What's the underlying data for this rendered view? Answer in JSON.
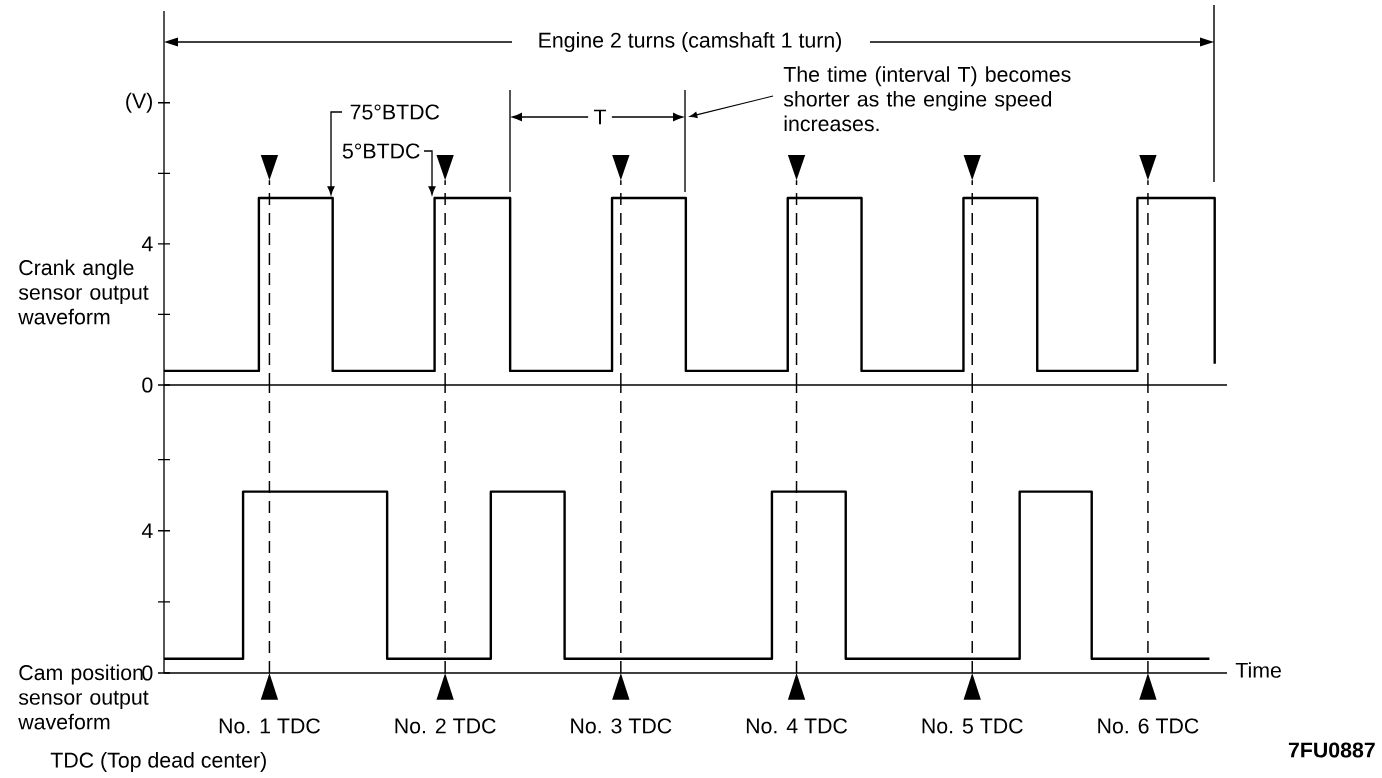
{
  "chart_data": [
    {
      "type": "step",
      "ylabel": "Crank angle sensor output waveform",
      "xlim": [
        0.4,
        6.45
      ],
      "ylim": [
        0,
        10.6
      ],
      "xticks": [
        {
          "value": 1,
          "label": null
        },
        {
          "value": 2,
          "label": null
        },
        {
          "value": 3,
          "label": null
        },
        {
          "value": 4,
          "label": null
        },
        {
          "value": 5,
          "label": null
        },
        {
          "value": 6,
          "label": null
        }
      ],
      "yticks": [
        0,
        {
          "value": 2,
          "label": null
        },
        4,
        {
          "value": 6,
          "label": null
        },
        {
          "value": 8,
          "label": "(V)"
        }
      ],
      "tick_labels": "y",
      "series": [
        {
          "color": "#000000",
          "x": [
            0.4,
            0.94,
            1.36,
            1.94,
            2.37,
            2.95,
            3.37,
            3.95,
            4.37,
            4.95,
            5.37,
            5.94,
            6.38
          ],
          "values": [
            0.4,
            5.3,
            0.4,
            5.3,
            0.4,
            5.3,
            0.4,
            5.3,
            0.4,
            5.3,
            0.4,
            5.3,
            0.6
          ]
        }
      ],
      "ref_lines": [
        {
          "axis": "x",
          "value": 1,
          "line_style": "dashed"
        },
        {
          "axis": "x",
          "value": 2,
          "line_style": "dashed"
        },
        {
          "axis": "x",
          "value": 3,
          "line_style": "dashed"
        },
        {
          "axis": "x",
          "value": 4,
          "line_style": "dashed"
        },
        {
          "axis": "x",
          "value": 5,
          "line_style": "dashed"
        },
        {
          "axis": "x",
          "value": 6,
          "line_style": "dashed"
        }
      ],
      "annotations": [
        "Engine 2 turns (camshaft 1 turn)",
        "75°BTDC",
        "5°BTDC",
        "T",
        "The time (interval T) becomes shorter as the engine speed increases."
      ]
    },
    {
      "type": "step",
      "ylabel": "Cam position sensor output waveform",
      "xlabel": "Time",
      "xlim": [
        0.4,
        6.45
      ],
      "ylim": [
        0,
        8.1
      ],
      "xticks": [
        {
          "value": 1,
          "label": "No. 1 TDC"
        },
        {
          "value": 2,
          "label": "No. 2 TDC"
        },
        {
          "value": 3,
          "label": "No. 3 TDC"
        },
        {
          "value": 4,
          "label": "No. 4 TDC"
        },
        {
          "value": 5,
          "label": "No. 5 TDC"
        },
        {
          "value": 6,
          "label": "No. 6 TDC"
        }
      ],
      "yticks": [
        0,
        {
          "value": 2,
          "label": null
        },
        4,
        {
          "value": 6,
          "label": null
        }
      ],
      "series": [
        {
          "color": "#000000",
          "x": [
            0.4,
            0.85,
            1.67,
            2.26,
            2.68,
            3.86,
            4.28,
            5.27,
            5.68,
            6.35
          ],
          "values": [
            0.4,
            5.1,
            0.4,
            5.1,
            0.4,
            5.1,
            0.4,
            5.1,
            0.4,
            0.4
          ]
        }
      ],
      "ref_lines": [
        {
          "axis": "x",
          "value": 1,
          "line_style": "dashed"
        },
        {
          "axis": "x",
          "value": 2,
          "line_style": "dashed"
        },
        {
          "axis": "x",
          "value": 3,
          "line_style": "dashed"
        },
        {
          "axis": "x",
          "value": 4,
          "line_style": "dashed"
        },
        {
          "axis": "x",
          "value": 5,
          "line_style": "dashed"
        },
        {
          "axis": "x",
          "value": 6,
          "line_style": "dashed"
        }
      ],
      "annotations": [
        "TDC (Top dead center)",
        "7FU0887"
      ]
    }
  ]
}
